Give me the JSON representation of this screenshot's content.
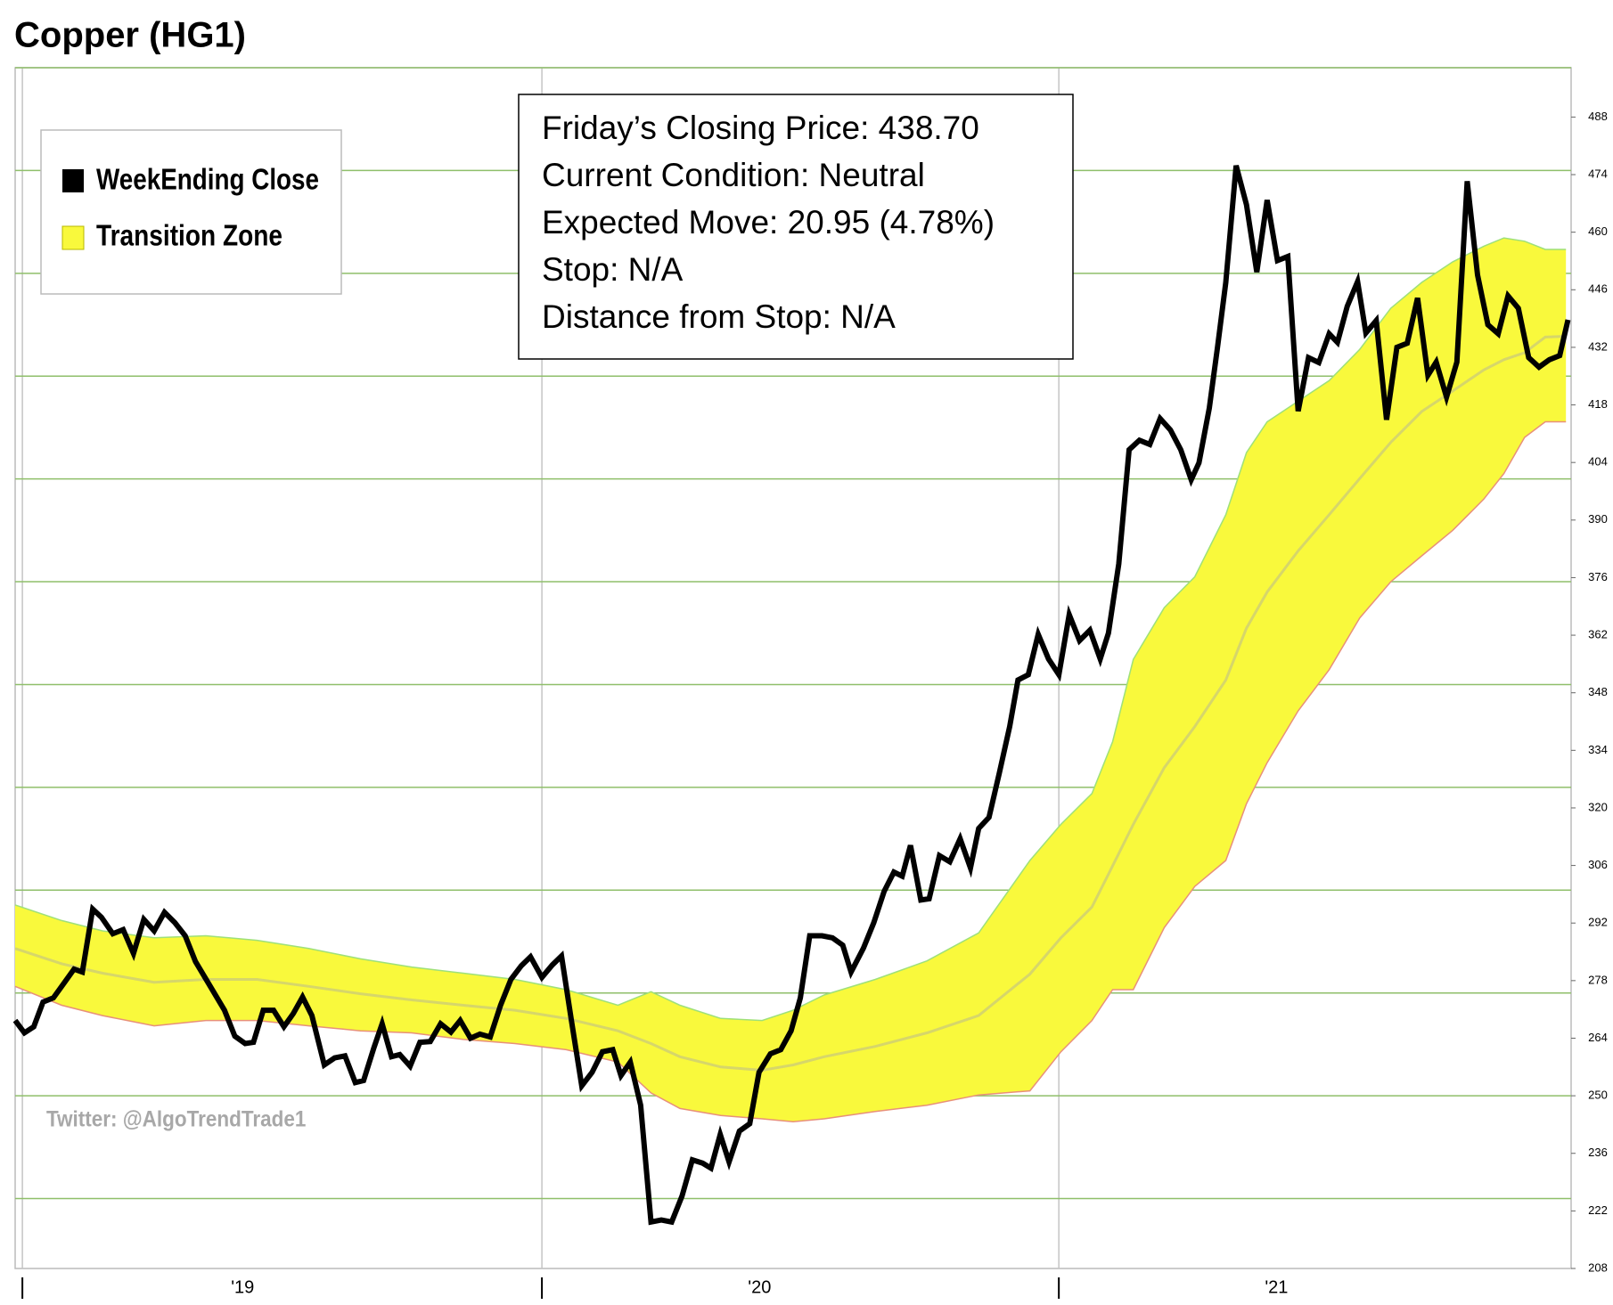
{
  "chart_data": {
    "type": "line",
    "title": "Copper (HG1)",
    "x": [
      2018.56,
      2018.578,
      2018.596,
      2018.614,
      2018.634,
      2018.654,
      2018.674,
      2018.69,
      2018.71,
      2018.727,
      2018.749,
      2018.769,
      2018.789,
      2018.809,
      2018.829,
      2018.849,
      2018.869,
      2018.889,
      2018.909,
      2018.939,
      2018.965,
      2018.985,
      2019.005,
      2019.021,
      2019.04,
      2019.06,
      2019.08,
      2019.098,
      2019.116,
      2019.134,
      2019.158,
      2019.178,
      2019.198,
      2019.218,
      2019.234,
      2019.254,
      2019.27,
      2019.288,
      2019.304,
      2019.324,
      2019.343,
      2019.363,
      2019.383,
      2019.403,
      2019.421,
      2019.441,
      2019.459,
      2019.479,
      2019.499,
      2019.519,
      2019.539,
      2019.557,
      2019.579,
      2019.599,
      2019.617,
      2019.636,
      2019.656,
      2019.676,
      2019.696,
      2019.716,
      2019.732,
      2019.75,
      2019.77,
      2019.79,
      2019.81,
      2019.83,
      2019.85,
      2019.87,
      2019.89,
      2019.906,
      2019.924,
      2019.941,
      2019.961,
      2019.981,
      2019.999,
      2020.021,
      2020.041,
      2020.061,
      2020.079,
      2020.097,
      2020.121,
      2020.141,
      2020.161,
      2020.177,
      2020.201,
      2020.221,
      2020.241,
      2020.26,
      2020.276,
      2020.292,
      2020.312,
      2020.328,
      2020.348,
      2020.368,
      2020.388,
      2020.408,
      2020.424,
      2020.444,
      2020.464,
      2020.484,
      2020.5,
      2020.52,
      2020.539,
      2020.559,
      2020.579,
      2020.599,
      2020.619,
      2020.639,
      2020.659,
      2020.675,
      2020.695,
      2020.715,
      2020.735,
      2020.755,
      2020.775,
      2020.795,
      2020.815,
      2020.835,
      2020.85,
      2020.87,
      2020.886,
      2020.902,
      2020.922,
      2020.942,
      2020.962,
      2020.982,
      2021.002,
      2021.022,
      2021.042,
      2021.062,
      2021.082,
      2021.102,
      2021.118,
      2021.137,
      2021.157,
      2021.173,
      2021.193,
      2021.213,
      2021.233,
      2021.253,
      2021.273,
      2021.293,
      2021.309,
      2021.329,
      2021.349,
      2021.369,
      2021.389,
      2021.409,
      2021.429,
      2021.448,
      2021.468,
      2021.488,
      2021.508,
      2021.528,
      2021.548,
      2021.564
    ],
    "series": [
      {
        "name": "WeekEnding Close",
        "color": "#000000",
        "values": [
          268.3,
          265.3,
          266.8,
          272.8,
          273.8,
          277.3,
          280.8,
          280.1,
          295.4,
          293.4,
          289.4,
          290.4,
          284.6,
          292.9,
          290.1,
          294.6,
          292.1,
          288.9,
          282.6,
          276.3,
          270.8,
          264.5,
          262.7,
          263.0,
          270.8,
          270.8,
          266.8,
          270.0,
          274.0,
          269.5,
          257.5,
          259.2,
          259.7,
          253.2,
          253.7,
          261.7,
          267.5,
          259.5,
          260.0,
          257.2,
          263.0,
          263.2,
          267.5,
          265.5,
          268.3,
          264.0,
          265.0,
          264.3,
          272.0,
          278.3,
          281.6,
          283.8,
          278.8,
          281.8,
          284.0,
          268.3,
          252.4,
          255.7,
          260.7,
          261.2,
          254.9,
          258.2,
          247.7,
          219.3,
          219.8,
          219.3,
          225.6,
          234.4,
          233.6,
          232.4,
          240.6,
          233.9,
          241.4,
          243.2,
          255.7,
          260.2,
          261.2,
          265.8,
          273.8,
          288.9,
          288.9,
          288.4,
          286.6,
          280.1,
          285.9,
          292.1,
          299.7,
          304.4,
          303.4,
          310.9,
          297.6,
          297.9,
          308.4,
          306.9,
          312.5,
          305.4,
          315.0,
          317.7,
          328.5,
          339.8,
          351.1,
          352.4,
          362.2,
          356.2,
          352.4,
          367.0,
          360.7,
          363.2,
          356.2,
          362.5,
          379.3,
          407.1,
          409.4,
          408.4,
          414.7,
          411.9,
          407.1,
          399.8,
          403.9,
          417.2,
          432.0,
          447.8,
          476.2,
          466.7,
          450.3,
          467.8,
          453.1,
          454.1,
          416.5,
          429.5,
          428.3,
          435.3,
          433.2,
          442.0,
          448.0,
          435.5,
          438.5,
          414.4,
          432.0,
          433.0,
          444.0,
          425.2,
          428.4,
          419.9,
          428.4,
          472.4,
          449.6,
          437.5,
          435.3,
          444.5,
          441.5,
          429.5,
          427.2,
          429.0,
          430.0,
          438.7
        ]
      }
    ],
    "band": {
      "name": "Transition Zone",
      "color": "#f9f93c",
      "upper_color": "#9ee07a",
      "lower_color": "#e8907a",
      "mid_color": "#d6d66a",
      "x": [
        2018.56,
        2018.65,
        2018.729,
        2018.829,
        2018.929,
        2019.028,
        2019.128,
        2019.228,
        2019.327,
        2019.427,
        2019.527,
        2019.626,
        2019.726,
        2019.79,
        2019.846,
        2019.925,
        2020.005,
        2020.065,
        2020.125,
        2020.224,
        2020.324,
        2020.424,
        2020.523,
        2020.583,
        2020.643,
        2020.683,
        2020.723,
        2020.783,
        2020.842,
        2020.902,
        2020.942,
        2020.982,
        2021.042,
        2021.102,
        2021.161,
        2021.221,
        2021.281,
        2021.341,
        2021.401,
        2021.44,
        2021.48,
        2021.52,
        2021.56
      ],
      "upper": [
        296.4,
        292.6,
        290.1,
        288.4,
        288.9,
        287.8,
        285.8,
        283.3,
        281.3,
        279.8,
        278.3,
        275.8,
        272.0,
        275.3,
        272.0,
        268.8,
        268.3,
        270.8,
        274.5,
        278.3,
        282.8,
        289.6,
        307.2,
        316.0,
        323.5,
        336.1,
        356.1,
        368.7,
        376.2,
        391.3,
        406.4,
        413.9,
        418.9,
        423.9,
        431.5,
        441.5,
        447.8,
        452.8,
        456.6,
        458.6,
        457.8,
        455.8,
        455.8
      ],
      "lower": [
        276.6,
        272.0,
        269.5,
        267.0,
        268.3,
        268.3,
        267.0,
        265.8,
        265.3,
        263.7,
        262.7,
        261.2,
        258.2,
        250.7,
        246.9,
        245.2,
        244.4,
        243.7,
        244.4,
        246.2,
        247.7,
        250.2,
        251.2,
        260.7,
        268.3,
        275.8,
        275.8,
        290.9,
        300.9,
        307.2,
        321.0,
        331.0,
        343.6,
        353.6,
        366.2,
        375.0,
        381.3,
        387.5,
        395.1,
        401.3,
        410.1,
        413.9,
        413.9
      ],
      "mid": [
        285.8,
        282.1,
        279.8,
        277.6,
        278.3,
        278.3,
        276.6,
        274.8,
        273.3,
        272.0,
        270.8,
        268.8,
        265.8,
        262.7,
        259.5,
        257.0,
        256.2,
        257.5,
        259.5,
        262.0,
        265.3,
        269.5,
        279.6,
        288.4,
        295.9,
        305.9,
        316.0,
        329.8,
        339.8,
        351.1,
        363.7,
        372.5,
        382.5,
        391.3,
        400.1,
        408.9,
        416.4,
        421.4,
        426.5,
        429.0,
        430.7,
        434.5,
        434.7
      ]
    },
    "xlim": [
      2018.56,
      2021.57
    ],
    "xticks": [
      {
        "value": 2019,
        "label": "'19"
      },
      {
        "value": 2020,
        "label": "'20"
      },
      {
        "value": 2021,
        "label": "'21"
      }
    ],
    "xgrid": [
      2018.574,
      2019.579,
      2020.579
    ],
    "ylim": [
      208,
      500
    ],
    "yticks": [
      208,
      222,
      236,
      250,
      264,
      278,
      292,
      306,
      320,
      334,
      348,
      362,
      376,
      390,
      404,
      418,
      432,
      446,
      460,
      474,
      488
    ],
    "ygrid": [
      225,
      250,
      275,
      300,
      325,
      350,
      375,
      400,
      425,
      450,
      475,
      500
    ],
    "grid": true,
    "info_box": [
      "Friday’s Closing Price: 438.70",
      "Current Condition: Neutral",
      "Expected Move: 20.95 (4.78%)",
      "Stop: N/A",
      "Distance from Stop: N/A"
    ],
    "annotation": "Twitter: @AlgoTrendTrade1"
  }
}
